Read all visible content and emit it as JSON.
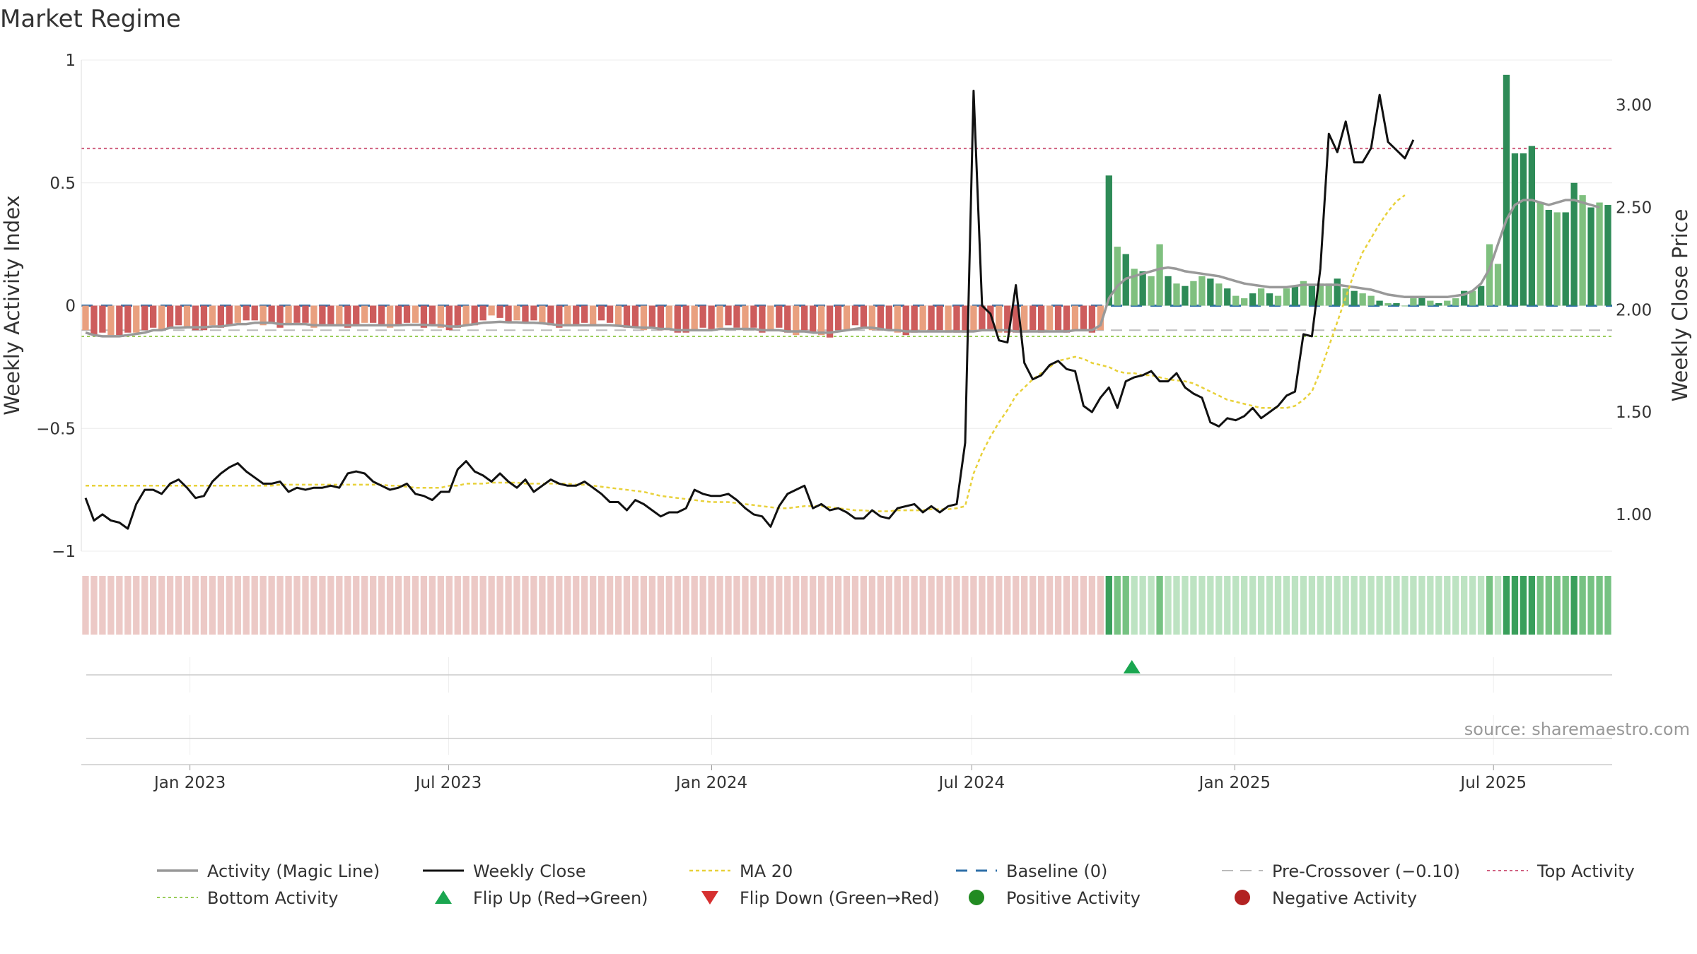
{
  "chart_data": {
    "type": "bar",
    "title": "Market Regime",
    "source": "source: sharemaestro.com",
    "ylabel_left": "Weekly Activity Index",
    "ylabel_right": "Weekly Close Price",
    "ylim_left": [
      -1,
      1
    ],
    "ylim_right": [
      0.82,
      3.22
    ],
    "left_ticks": [
      {
        "v": 1,
        "label": "1"
      },
      {
        "v": 0.5,
        "label": "0.5"
      },
      {
        "v": 0,
        "label": "0"
      },
      {
        "v": -0.5,
        "label": "−0.5"
      },
      {
        "v": -1,
        "label": "−1"
      }
    ],
    "right_ticks": [
      {
        "v": 3.0,
        "label": "3.00"
      },
      {
        "v": 2.5,
        "label": "2.50"
      },
      {
        "v": 2.0,
        "label": "2.00"
      },
      {
        "v": 1.5,
        "label": "1.50"
      },
      {
        "v": 1.0,
        "label": "1.00"
      }
    ],
    "x_range": [
      "2022-10-17",
      "2025-09-22"
    ],
    "x_ticks": [
      {
        "date": "2023-01-01",
        "label": "Jan 2023"
      },
      {
        "date": "2023-07-01",
        "label": "Jul 2023"
      },
      {
        "date": "2024-01-01",
        "label": "Jan 2024"
      },
      {
        "date": "2024-07-01",
        "label": "Jul 2024"
      },
      {
        "date": "2025-01-01",
        "label": "Jan 2025"
      },
      {
        "date": "2025-07-01",
        "label": "Jul 2025"
      }
    ],
    "start_date": "2022-10-17",
    "interval_days": 7,
    "activity": [
      -0.1,
      -0.12,
      -0.11,
      -0.12,
      -0.12,
      -0.11,
      -0.11,
      -0.1,
      -0.09,
      -0.1,
      -0.09,
      -0.08,
      -0.09,
      -0.1,
      -0.1,
      -0.08,
      -0.09,
      -0.08,
      -0.07,
      -0.06,
      -0.06,
      -0.08,
      -0.07,
      -0.09,
      -0.08,
      -0.07,
      -0.07,
      -0.09,
      -0.08,
      -0.08,
      -0.08,
      -0.09,
      -0.08,
      -0.07,
      -0.07,
      -0.08,
      -0.09,
      -0.08,
      -0.07,
      -0.07,
      -0.09,
      -0.08,
      -0.09,
      -0.1,
      -0.09,
      -0.08,
      -0.08,
      -0.06,
      -0.04,
      -0.05,
      -0.07,
      -0.06,
      -0.07,
      -0.06,
      -0.07,
      -0.08,
      -0.09,
      -0.08,
      -0.08,
      -0.07,
      -0.08,
      -0.06,
      -0.07,
      -0.08,
      -0.09,
      -0.09,
      -0.1,
      -0.09,
      -0.1,
      -0.1,
      -0.11,
      -0.11,
      -0.1,
      -0.09,
      -0.1,
      -0.09,
      -0.08,
      -0.09,
      -0.1,
      -0.09,
      -0.11,
      -0.1,
      -0.09,
      -0.11,
      -0.12,
      -0.1,
      -0.11,
      -0.12,
      -0.13,
      -0.1,
      -0.1,
      -0.08,
      -0.09,
      -0.1,
      -0.1,
      -0.1,
      -0.11,
      -0.12,
      -0.11,
      -0.1,
      -0.1,
      -0.1,
      -0.11,
      -0.11,
      -0.11,
      -0.1,
      -0.1,
      -0.1,
      -0.11,
      -0.11,
      -0.11,
      -0.11,
      -0.1,
      -0.11,
      -0.1,
      -0.1,
      -0.11,
      -0.1,
      -0.1,
      -0.11,
      -0.1,
      0.53,
      0.24,
      0.21,
      0.15,
      0.14,
      0.12,
      0.25,
      0.12,
      0.09,
      0.08,
      0.1,
      0.12,
      0.11,
      0.09,
      0.07,
      0.04,
      0.03,
      0.05,
      0.07,
      0.05,
      0.04,
      0.07,
      0.08,
      0.1,
      0.08,
      0.09,
      0.09,
      0.11,
      0.07,
      0.06,
      0.05,
      0.04,
      0.02,
      0.01,
      0.01,
      0.0,
      0.03,
      0.04,
      0.02,
      0.01,
      0.02,
      0.03,
      0.06,
      0.06,
      0.08,
      0.25,
      0.17,
      0.94,
      0.62,
      0.62,
      0.65,
      0.42,
      0.39,
      0.38,
      0.38,
      0.5,
      0.45,
      0.4,
      0.42,
      0.41
    ],
    "magic_line": [
      -0.11,
      -0.12,
      -0.125,
      -0.125,
      -0.125,
      -0.12,
      -0.115,
      -0.11,
      -0.1,
      -0.1,
      -0.09,
      -0.09,
      -0.088,
      -0.088,
      -0.088,
      -0.085,
      -0.085,
      -0.08,
      -0.075,
      -0.075,
      -0.07,
      -0.07,
      -0.07,
      -0.075,
      -0.075,
      -0.075,
      -0.075,
      -0.08,
      -0.08,
      -0.08,
      -0.08,
      -0.08,
      -0.08,
      -0.08,
      -0.08,
      -0.08,
      -0.08,
      -0.08,
      -0.078,
      -0.078,
      -0.078,
      -0.08,
      -0.08,
      -0.085,
      -0.085,
      -0.08,
      -0.075,
      -0.07,
      -0.068,
      -0.066,
      -0.068,
      -0.068,
      -0.07,
      -0.07,
      -0.072,
      -0.075,
      -0.08,
      -0.08,
      -0.08,
      -0.08,
      -0.08,
      -0.08,
      -0.08,
      -0.082,
      -0.085,
      -0.088,
      -0.09,
      -0.09,
      -0.095,
      -0.095,
      -0.1,
      -0.1,
      -0.1,
      -0.1,
      -0.1,
      -0.095,
      -0.095,
      -0.095,
      -0.095,
      -0.095,
      -0.1,
      -0.1,
      -0.1,
      -0.105,
      -0.105,
      -0.105,
      -0.11,
      -0.11,
      -0.11,
      -0.105,
      -0.1,
      -0.095,
      -0.09,
      -0.09,
      -0.095,
      -0.1,
      -0.1,
      -0.105,
      -0.105,
      -0.105,
      -0.105,
      -0.105,
      -0.105,
      -0.105,
      -0.105,
      -0.105,
      -0.1,
      -0.1,
      -0.1,
      -0.1,
      -0.105,
      -0.105,
      -0.105,
      -0.105,
      -0.105,
      -0.105,
      -0.105,
      -0.1,
      -0.1,
      -0.1,
      -0.08,
      0.03,
      0.08,
      0.11,
      0.12,
      0.13,
      0.14,
      0.15,
      0.155,
      0.15,
      0.14,
      0.135,
      0.13,
      0.125,
      0.12,
      0.11,
      0.1,
      0.09,
      0.085,
      0.08,
      0.075,
      0.075,
      0.075,
      0.08,
      0.085,
      0.085,
      0.085,
      0.085,
      0.085,
      0.08,
      0.075,
      0.07,
      0.065,
      0.055,
      0.045,
      0.04,
      0.035,
      0.035,
      0.035,
      0.035,
      0.035,
      0.035,
      0.04,
      0.045,
      0.06,
      0.09,
      0.15,
      0.25,
      0.35,
      0.41,
      0.43,
      0.43,
      0.42,
      0.41,
      0.42,
      0.43,
      0.43,
      0.42,
      0.41,
      0.4
    ],
    "weekly_close": [
      1.08,
      0.97,
      1.0,
      0.97,
      0.96,
      0.93,
      1.05,
      1.12,
      1.12,
      1.1,
      1.15,
      1.17,
      1.13,
      1.08,
      1.09,
      1.16,
      1.2,
      1.23,
      1.25,
      1.21,
      1.18,
      1.15,
      1.15,
      1.16,
      1.11,
      1.13,
      1.12,
      1.13,
      1.13,
      1.14,
      1.13,
      1.2,
      1.21,
      1.2,
      1.16,
      1.14,
      1.12,
      1.13,
      1.15,
      1.1,
      1.09,
      1.07,
      1.11,
      1.11,
      1.22,
      1.26,
      1.21,
      1.19,
      1.16,
      1.2,
      1.16,
      1.13,
      1.17,
      1.11,
      1.14,
      1.17,
      1.15,
      1.14,
      1.14,
      1.16,
      1.13,
      1.1,
      1.06,
      1.06,
      1.02,
      1.07,
      1.05,
      1.02,
      0.99,
      1.01,
      1.01,
      1.03,
      1.12,
      1.1,
      1.09,
      1.09,
      1.1,
      1.07,
      1.03,
      1.0,
      0.99,
      0.94,
      1.04,
      1.1,
      1.12,
      1.14,
      1.03,
      1.05,
      1.02,
      1.03,
      1.01,
      0.98,
      0.98,
      1.02,
      0.99,
      0.98,
      1.03,
      1.04,
      1.05,
      1.01,
      1.04,
      1.01,
      1.04,
      1.05,
      1.35,
      3.07,
      2.02,
      1.98,
      1.85,
      1.84,
      2.12,
      1.74,
      1.66,
      1.68,
      1.73,
      1.75,
      1.71,
      1.7,
      1.53,
      1.5,
      1.57,
      1.62,
      1.52,
      1.65,
      1.67,
      1.68,
      1.7,
      1.65,
      1.65,
      1.69,
      1.62,
      1.59,
      1.57,
      1.45,
      1.43,
      1.47,
      1.46,
      1.48,
      1.52,
      1.47,
      1.5,
      1.53,
      1.58,
      1.6,
      1.88,
      1.87,
      2.2,
      2.86,
      2.77,
      2.92,
      2.72,
      2.72,
      2.79,
      3.05,
      2.82,
      2.78,
      2.74,
      2.83
    ],
    "ma20": [
      1.14,
      1.14,
      1.14,
      1.14,
      1.14,
      1.14,
      1.14,
      1.14,
      1.14,
      1.14,
      1.14,
      1.14,
      1.14,
      1.14,
      1.14,
      1.14,
      1.14,
      1.14,
      1.14,
      1.14,
      1.14,
      1.14,
      1.14,
      1.145,
      1.145,
      1.145,
      1.145,
      1.145,
      1.145,
      1.145,
      1.145,
      1.145,
      1.145,
      1.145,
      1.145,
      1.145,
      1.14,
      1.14,
      1.135,
      1.13,
      1.13,
      1.13,
      1.13,
      1.14,
      1.14,
      1.15,
      1.15,
      1.15,
      1.155,
      1.155,
      1.155,
      1.155,
      1.15,
      1.15,
      1.15,
      1.15,
      1.15,
      1.15,
      1.145,
      1.145,
      1.14,
      1.135,
      1.13,
      1.125,
      1.12,
      1.115,
      1.11,
      1.1,
      1.09,
      1.085,
      1.08,
      1.075,
      1.07,
      1.065,
      1.06,
      1.06,
      1.06,
      1.055,
      1.05,
      1.045,
      1.04,
      1.035,
      1.03,
      1.03,
      1.035,
      1.04,
      1.04,
      1.04,
      1.035,
      1.03,
      1.025,
      1.02,
      1.02,
      1.015,
      1.015,
      1.015,
      1.02,
      1.02,
      1.02,
      1.02,
      1.025,
      1.025,
      1.025,
      1.03,
      1.04,
      1.2,
      1.3,
      1.38,
      1.45,
      1.51,
      1.58,
      1.62,
      1.66,
      1.69,
      1.72,
      1.75,
      1.76,
      1.77,
      1.76,
      1.74,
      1.73,
      1.72,
      1.7,
      1.69,
      1.69,
      1.68,
      1.68,
      1.67,
      1.66,
      1.655,
      1.65,
      1.64,
      1.62,
      1.6,
      1.58,
      1.56,
      1.55,
      1.54,
      1.53,
      1.52,
      1.52,
      1.52,
      1.52,
      1.53,
      1.56,
      1.6,
      1.7,
      1.82,
      1.94,
      2.06,
      2.18,
      2.28,
      2.35,
      2.42,
      2.48,
      2.53,
      2.56
    ],
    "baseline": 0,
    "pre_crossover": -0.1,
    "top_activity": 0.64,
    "bottom_activity": -0.125,
    "flip_up": [
      {
        "date": "2024-10-21"
      }
    ],
    "flip_down": [],
    "colors": {
      "strong_red": "#cd5c5c",
      "light_red": "#e9a07f",
      "strong_green": "#2e8b57",
      "light_green": "#7fc07f",
      "magic_line": "#999999",
      "weekly_close": "#111111",
      "ma20": "#e8d13a",
      "baseline": "#2f6fa8",
      "pre_crossover": "#bbbbbb",
      "top_activity": "#d06080",
      "bottom_activity": "#9acd5a",
      "flip_up": "#1aa650",
      "flip_down": "#d63030",
      "positive": "#228b22",
      "negative": "#b22222"
    },
    "legend": [
      {
        "key": "magic",
        "label": "Activity (Magic Line)"
      },
      {
        "key": "close",
        "label": "Weekly Close"
      },
      {
        "key": "ma",
        "label": "MA 20"
      },
      {
        "key": "base",
        "label": "Baseline (0)"
      },
      {
        "key": "pre",
        "label": "Pre-Crossover (−0.10)"
      },
      {
        "key": "top",
        "label": "Top Activity"
      },
      {
        "key": "bottom",
        "label": "Bottom Activity"
      },
      {
        "key": "flipup",
        "label": "Flip Up (Red→Green)"
      },
      {
        "key": "flipdown",
        "label": "Flip Down (Green→Red)"
      },
      {
        "key": "pos",
        "label": "Positive Activity"
      },
      {
        "key": "neg",
        "label": "Negative Activity"
      }
    ],
    "legend_placement": "bottom"
  }
}
